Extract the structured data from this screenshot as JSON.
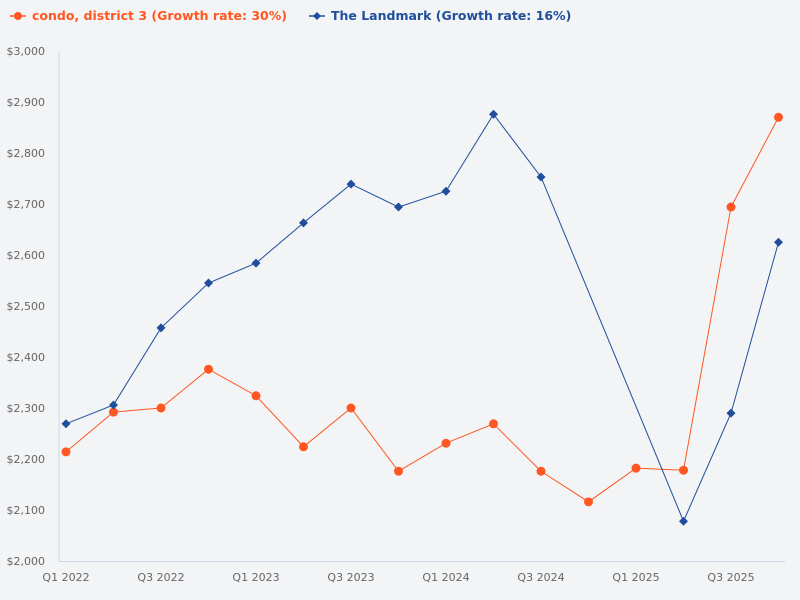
{
  "chart_data": {
    "type": "line",
    "title": "",
    "xlabel": "",
    "ylabel": "",
    "ylim": [
      2000,
      3000
    ],
    "yticks": [
      "$2,000",
      "$2,100",
      "$2,200",
      "$2,300",
      "$2,400",
      "$2,500",
      "$2,600",
      "$2,700",
      "$2,800",
      "$2,900",
      "$3,000"
    ],
    "ytick_values": [
      2000,
      2100,
      2200,
      2300,
      2400,
      2500,
      2600,
      2700,
      2800,
      2900,
      3000
    ],
    "categories": [
      "Q1 2022",
      "Q2 2022",
      "Q3 2022",
      "Q4 2022",
      "Q1 2023",
      "Q2 2023",
      "Q3 2023",
      "Q4 2023",
      "Q1 2024",
      "Q2 2024",
      "Q3 2024",
      "Q4 2024",
      "Q1 2025",
      "Q2 2025",
      "Q3 2025",
      "Q4 2025"
    ],
    "xtick_labels": [
      "Q1 2022",
      "Q3 2022",
      "Q1 2023",
      "Q3 2023",
      "Q1 2024",
      "Q3 2024",
      "Q1 2025",
      "Q3 2025"
    ],
    "grid": false,
    "legend_position": "top-left",
    "series": [
      {
        "name": "condo, district 3 (Growth rate: 30%)",
        "color": "#ff5722",
        "marker": "circle",
        "values": [
          2214,
          2292,
          2300,
          2376,
          2324,
          2224,
          2300,
          2176,
          2231,
          2269,
          2176,
          2116,
          2182,
          2178,
          2694,
          2870
        ]
      },
      {
        "name": "The Landmark (Growth rate: 16%)",
        "color": "#1f4e9c",
        "marker": "diamond",
        "values": [
          2269,
          2306,
          2457,
          2545,
          2584,
          2663,
          2739,
          2694,
          2725,
          2876,
          2753,
          null,
          null,
          2078,
          2290,
          2625
        ]
      }
    ]
  }
}
